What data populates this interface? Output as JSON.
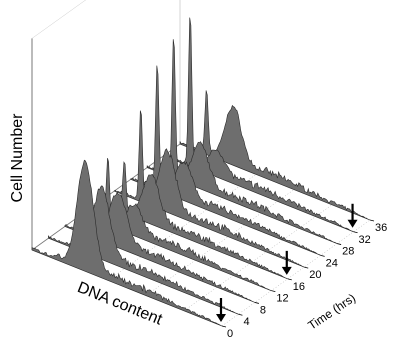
{
  "chart_data": {
    "type": "area",
    "subtype": "3d-waterfall-histograms",
    "ylabel": "Cell Number",
    "xlabel": "DNA content",
    "zlabel": "Time (hrs)",
    "time_ticks": [
      "0",
      "4",
      "8",
      "12",
      "16",
      "20",
      "24",
      "28",
      "32",
      "36"
    ],
    "arrow_times": [
      0,
      16,
      32
    ],
    "dna_range": [
      0,
      1
    ],
    "series": [
      {
        "time": 0,
        "g1": 0.14,
        "g1_peak": 0.02,
        "g2_peak": 0.46,
        "g2_width": 0.06
      },
      {
        "time": 4,
        "g1": 0.14,
        "g1_peak": 0.1,
        "g2_peak": 0.3,
        "g2_width": 0.06
      },
      {
        "time": 8,
        "g1": 0.14,
        "g1_peak": 0.18,
        "g2_peak": 0.22,
        "g2_width": 0.065
      },
      {
        "time": 12,
        "g1": 0.14,
        "g1_peak": 0.3,
        "g2_peak": 0.12,
        "g2_width": 0.06
      },
      {
        "time": 16,
        "g1": 0.14,
        "g1_peak": 0.22,
        "g2_peak": 0.2,
        "g2_width": 0.06
      },
      {
        "time": 20,
        "g1": 0.14,
        "g1_peak": 0.4,
        "g2_peak": 0.25,
        "g2_width": 0.06
      },
      {
        "time": 24,
        "g1": 0.14,
        "g1_peak": 0.55,
        "g2_peak": 0.15,
        "g2_width": 0.06
      },
      {
        "time": 28,
        "g1": 0.14,
        "g1_peak": 0.62,
        "g2_peak": 0.18,
        "g2_width": 0.06
      },
      {
        "time": 32,
        "g1": 0.14,
        "g1_peak": 0.66,
        "g2_peak": 0.1,
        "g2_width": 0.06
      },
      {
        "time": 36,
        "g1": 0.14,
        "g1_peak": 0.28,
        "g2_peak": 0.24,
        "g2_width": 0.06
      }
    ],
    "colors": {
      "fill": "#6e6e6e",
      "stroke": "#2a2a2a",
      "grid": "#9a9a9a"
    }
  }
}
